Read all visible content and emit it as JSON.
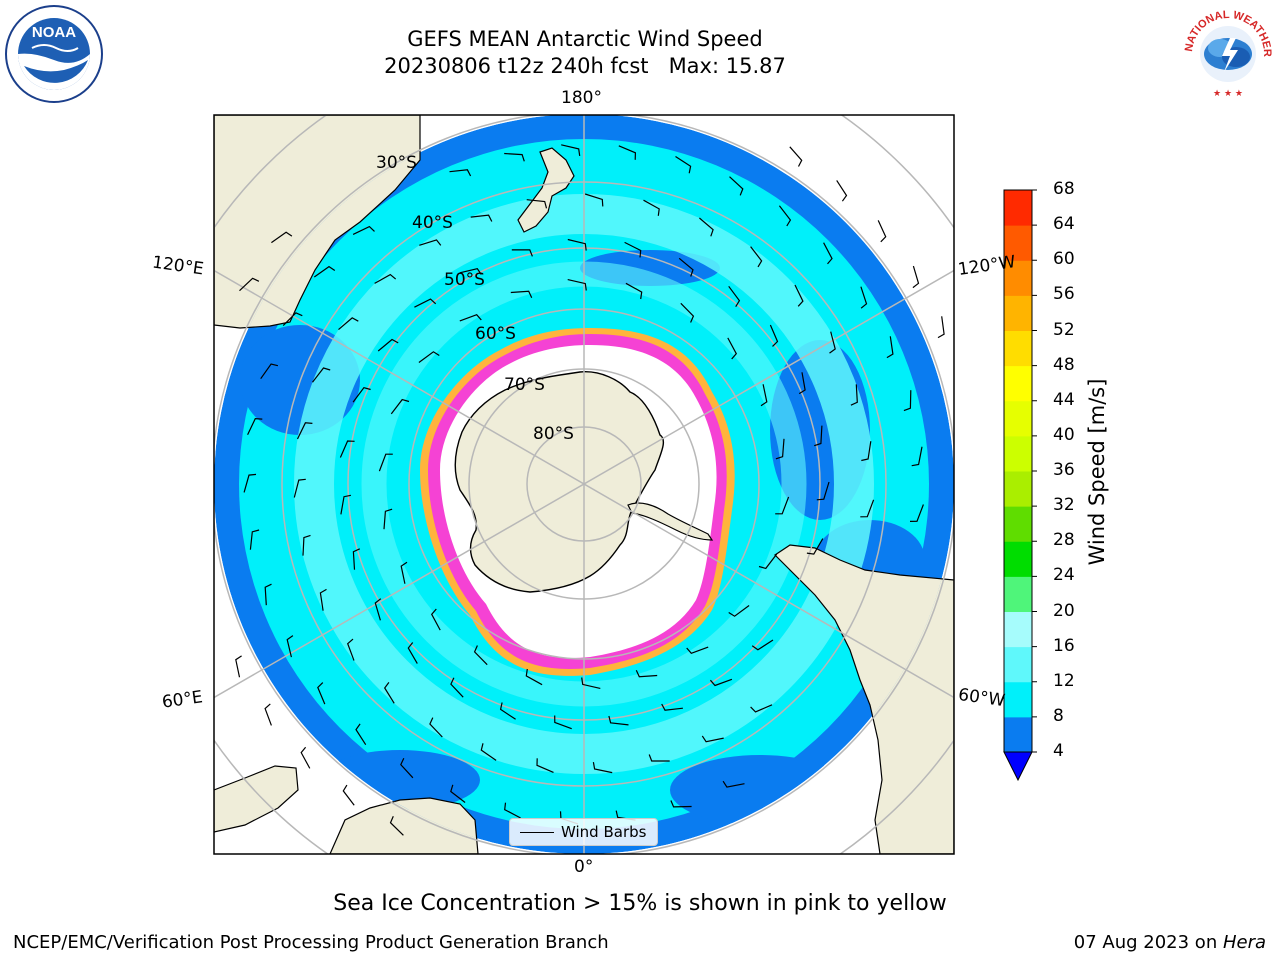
{
  "title": {
    "line1": "GEFS MEAN Antarctic Wind Speed",
    "line2": "20230806 t12z 240h fcst   Max: 15.87"
  },
  "map": {
    "projection": "south-polar-stereographic",
    "longitude_labels": {
      "top": "180°",
      "bottom": "0°",
      "upper_left": "120°E",
      "upper_right": "120°W",
      "lower_left": "60°E",
      "lower_right": "60°W"
    },
    "latitude_labels": [
      "30°S",
      "40°S",
      "50°S",
      "60°S",
      "70°S",
      "80°S"
    ],
    "legend_label": "Wind Barbs",
    "sea_ice_note": "Sea Ice Concentration > 15% is shown in pink to yellow",
    "colors": {
      "land": "#efedd9",
      "ocean_low": "#0a7cf0",
      "ocean_mid": "#00f0fa",
      "ocean_high": "#5ff8fb",
      "sea_ice_pink": "#f542d4",
      "sea_ice_orange": "#ffb43c",
      "grid": "#b8b8b8"
    }
  },
  "colorbar": {
    "label": "Wind Speed [m/s]",
    "ticks": [
      "68",
      "64",
      "60",
      "56",
      "52",
      "48",
      "44",
      "40",
      "36",
      "32",
      "28",
      "24",
      "20",
      "16",
      "12",
      "8",
      "4"
    ],
    "colors": [
      "#0000ff",
      "#0a7cf0",
      "#00f0fa",
      "#5ff8fb",
      "#a6fcfc",
      "#4ff57a",
      "#00dd00",
      "#5fdd00",
      "#aaee00",
      "#ccff00",
      "#e6ff00",
      "#ffff00",
      "#ffdd00",
      "#ffb400",
      "#ff8c00",
      "#ff5a00",
      "#ff2a00",
      "#ff0000"
    ]
  },
  "logos": {
    "left_name": "NOAA",
    "right_text": "NATIONAL WEATHER SERVICE"
  },
  "footer": {
    "left": "NCEP/EMC/Verification Post Processing Product Generation Branch",
    "right_date": "07 Aug 2023 on ",
    "right_host": "Hera"
  }
}
